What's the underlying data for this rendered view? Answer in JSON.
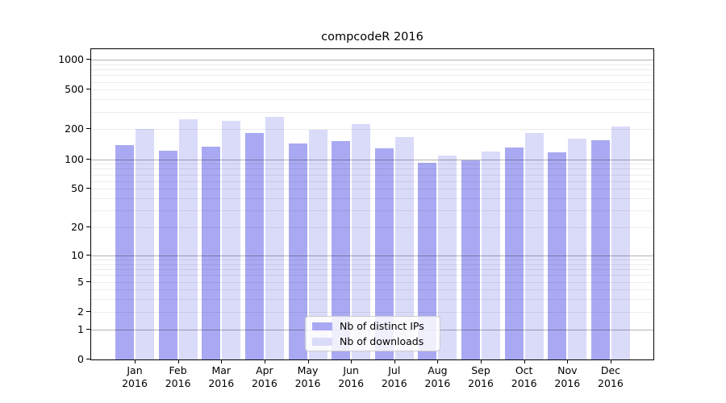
{
  "chart_data": {
    "type": "bar",
    "title": "compcodeR 2016",
    "year": "2016",
    "months": [
      "Jan",
      "Feb",
      "Mar",
      "Apr",
      "May",
      "Jun",
      "Jul",
      "Aug",
      "Sep",
      "Oct",
      "Nov",
      "Dec"
    ],
    "categories": [
      "Jan 2016",
      "Feb 2016",
      "Mar 2016",
      "Apr 2016",
      "May 2016",
      "Jun 2016",
      "Jul 2016",
      "Aug 2016",
      "Sep 2016",
      "Oct 2016",
      "Nov 2016",
      "Dec 2016"
    ],
    "series": [
      {
        "name": "Nb of distinct IPs",
        "color": "#a9a9f3",
        "values": [
          138,
          123,
          133,
          183,
          143,
          152,
          129,
          92,
          97,
          132,
          118,
          156
        ]
      },
      {
        "name": "Nb of downloads",
        "color": "#dadaf9",
        "values": [
          201,
          254,
          243,
          268,
          198,
          227,
          168,
          108,
          120,
          183,
          160,
          213
        ]
      }
    ],
    "xlabel": "",
    "ylabel": "",
    "yscale": "log1p",
    "yticks": [
      0,
      1,
      2,
      5,
      10,
      20,
      50,
      100,
      200,
      500,
      1000
    ],
    "ylim": [
      0,
      1000
    ],
    "grid": "horizontal, minor and major",
    "legend_position": "inside bottom-center"
  },
  "colors": {
    "bar_distinct_ips": "#a9a9f3",
    "bar_downloads": "#dadaf9",
    "grid_major": "#adadad",
    "grid_minor": "#ededed",
    "frame": "#000000",
    "legend_border": "#cccccc"
  }
}
